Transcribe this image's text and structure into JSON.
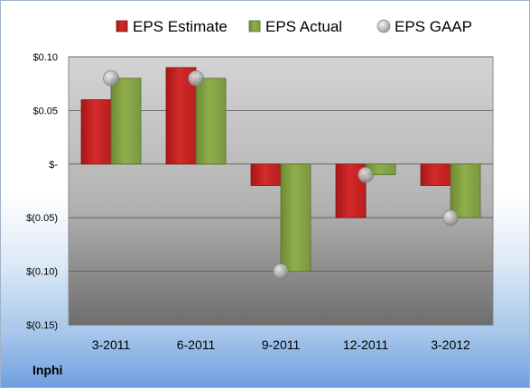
{
  "company_label": "Inphi",
  "colors": {
    "estimate": "#d42a2a",
    "actual": "#8fae4a",
    "gaap": "#b7b7b7",
    "plot_top": "#d4d4d4",
    "plot_bottom": "#6e6e6e"
  },
  "chart_data": {
    "type": "bar",
    "categories": [
      "3-2011",
      "6-2011",
      "9-2011",
      "12-2011",
      "3-2012"
    ],
    "series": [
      {
        "name": "EPS Estimate",
        "kind": "bar",
        "values": [
          0.06,
          0.09,
          -0.02,
          -0.05,
          -0.02
        ]
      },
      {
        "name": "EPS Actual",
        "kind": "bar",
        "values": [
          0.08,
          0.08,
          -0.1,
          -0.01,
          -0.05
        ]
      },
      {
        "name": "EPS GAAP",
        "kind": "marker",
        "values": [
          0.08,
          0.08,
          -0.1,
          -0.01,
          -0.05
        ]
      }
    ],
    "y_ticks": [
      {
        "value": 0.1,
        "label": "$0.10"
      },
      {
        "value": 0.05,
        "label": "$0.05"
      },
      {
        "value": 0,
        "label": "$-"
      },
      {
        "value": -0.05,
        "label": "$(0.05)"
      },
      {
        "value": -0.1,
        "label": "$(0.10)"
      },
      {
        "value": -0.15,
        "label": "$(0.15)"
      }
    ],
    "ylim": [
      -0.15,
      0.1
    ],
    "grid": true,
    "legend_position": "top"
  }
}
